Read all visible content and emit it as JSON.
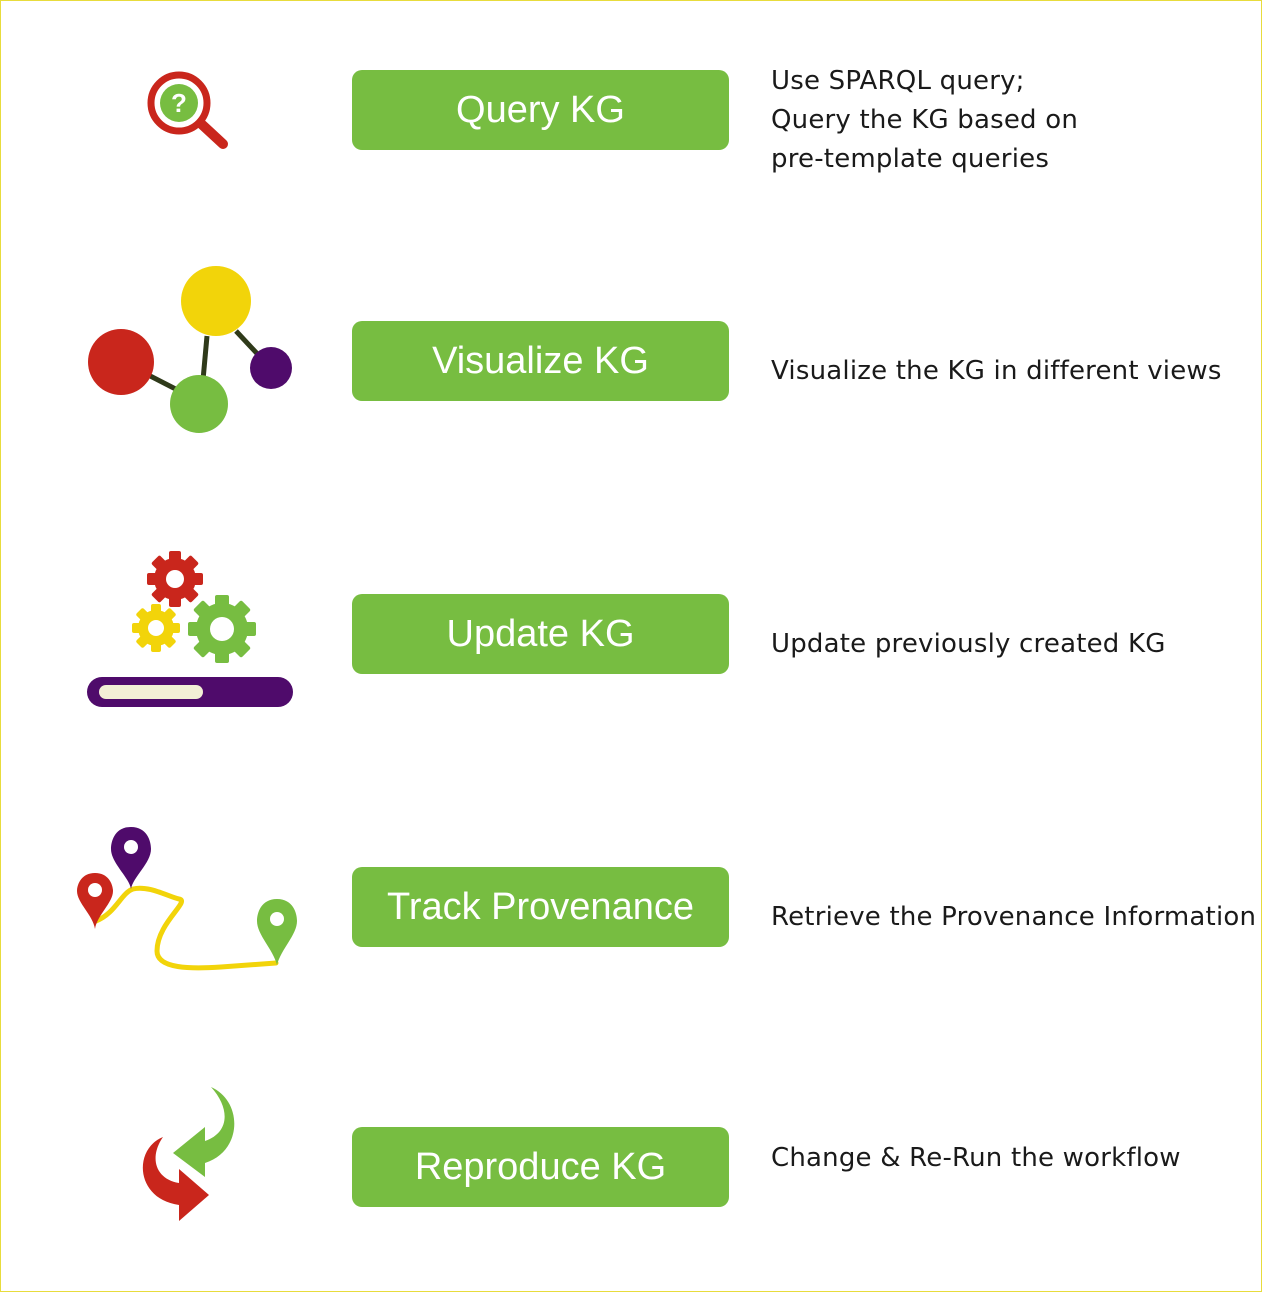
{
  "rows": [
    {
      "id": "query",
      "label": "Query KG",
      "icon": "magnifier-question-icon",
      "description": [
        "Use SPARQL query;",
        "Query the KG based on",
        "pre-template queries"
      ]
    },
    {
      "id": "visualize",
      "label": "Visualize KG",
      "icon": "graph-nodes-icon",
      "description": [
        "Visualize the KG in different views"
      ]
    },
    {
      "id": "update",
      "label": "Update KG",
      "icon": "gears-progress-icon",
      "description": [
        "Update previously created KG"
      ]
    },
    {
      "id": "provenance",
      "label": "Track Provenance",
      "icon": "route-pins-icon",
      "description": [
        "Retrieve the Provenance Information"
      ]
    },
    {
      "id": "reproduce",
      "label": "Reproduce KG",
      "icon": "cycle-arrows-icon",
      "description": [
        "Change & Re-Run the workflow"
      ]
    }
  ],
  "colors": {
    "button": "#77bd41",
    "button_text": "#ffffff",
    "red": "#c9261c",
    "yellow": "#f2d40a",
    "green": "#77bd41",
    "purple": "#4f0b6b",
    "border": "#e8dc3c"
  }
}
